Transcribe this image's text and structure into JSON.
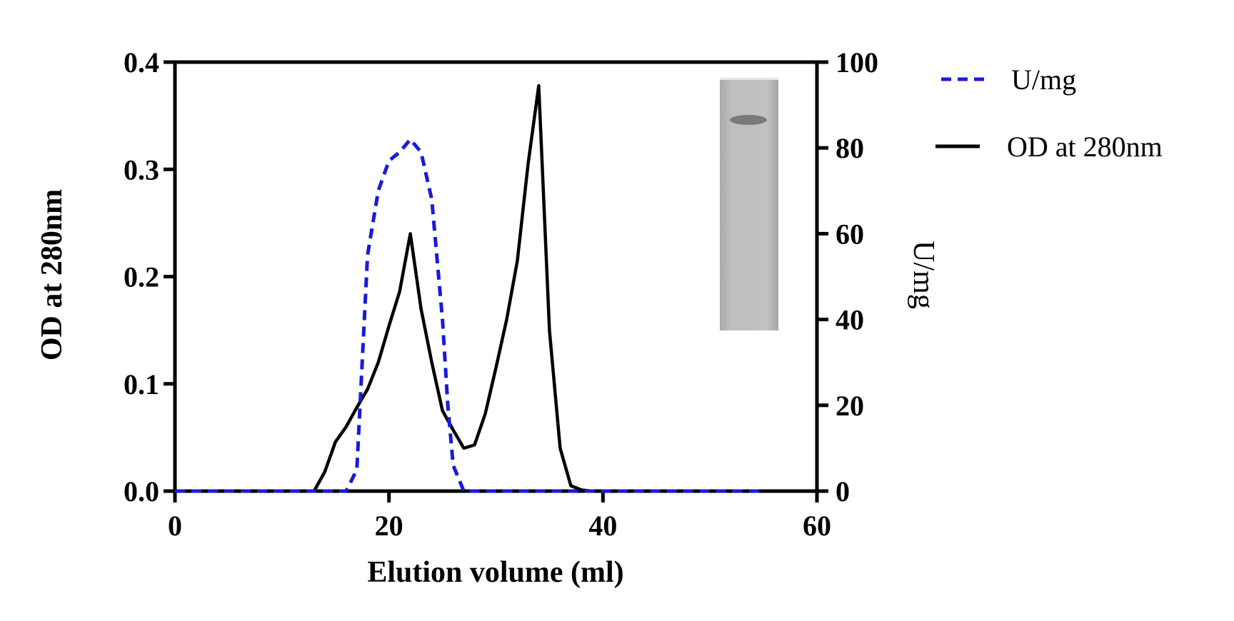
{
  "chart_data": {
    "type": "line",
    "xlabel": "Elution volume (ml)",
    "ylabel": "OD at 280nm",
    "y2label": "U/mg",
    "xlim": [
      0,
      60
    ],
    "ylim": [
      0,
      0.4
    ],
    "y2lim": [
      0,
      100
    ],
    "xticks": [
      "0",
      "20",
      "40",
      "60"
    ],
    "yticks": [
      "0.0",
      "0.1",
      "0.2",
      "0.3",
      "0.4"
    ],
    "y2ticks": [
      "0",
      "20",
      "40",
      "60",
      "80",
      "100"
    ],
    "grid": false,
    "legend_position": "right",
    "series": [
      {
        "name": "U/mg",
        "axis": "right",
        "style": "dashed",
        "color": "#1a1adb",
        "x": [
          0,
          16,
          17,
          17.5,
          18,
          19,
          20,
          21,
          22,
          23,
          24,
          25,
          25.5,
          26,
          27,
          40,
          55
        ],
        "values": [
          0,
          0,
          5,
          30,
          55,
          70,
          77,
          79,
          82,
          79,
          68,
          40,
          20,
          6,
          0,
          0,
          0
        ]
      },
      {
        "name": "OD at 280nm",
        "axis": "left",
        "style": "solid",
        "color": "#000000",
        "x": [
          0,
          13,
          14,
          15,
          16,
          17,
          18,
          19,
          20,
          21,
          22,
          23,
          24,
          25,
          26,
          27,
          28,
          29,
          30,
          31,
          32,
          33,
          34,
          35,
          36,
          37,
          38,
          39,
          60
        ],
        "values": [
          0,
          0,
          0.018,
          0.046,
          0.06,
          0.078,
          0.095,
          0.12,
          0.154,
          0.186,
          0.24,
          0.17,
          0.12,
          0.075,
          0.057,
          0.04,
          0.043,
          0.072,
          0.115,
          0.16,
          0.215,
          0.305,
          0.378,
          0.15,
          0.04,
          0.005,
          0.001,
          0,
          0
        ]
      }
    ]
  },
  "colors": {
    "u_mg": "#1a1adb",
    "od": "#000000"
  }
}
